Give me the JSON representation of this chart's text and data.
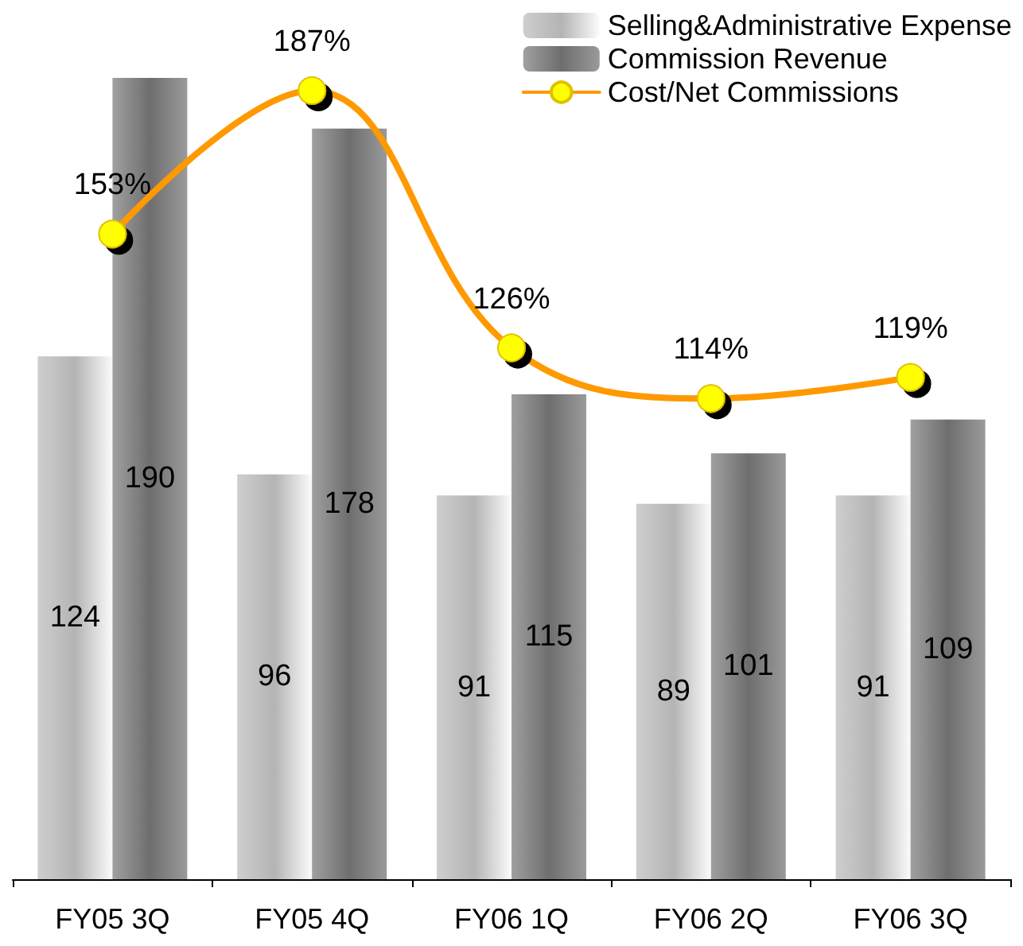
{
  "chart_data": {
    "type": "bar",
    "categories": [
      "FY05 3Q",
      "FY05 4Q",
      "FY06 1Q",
      "FY06 2Q",
      "FY06 3Q"
    ],
    "series": [
      {
        "name": "Selling&Administrative Expense",
        "color": "#b4b4b4",
        "values": [
          124,
          96,
          91,
          89,
          91
        ]
      },
      {
        "name": "Commission Revenue",
        "color": "#6e6e6e",
        "values": [
          190,
          178,
          115,
          101,
          109
        ]
      },
      {
        "name": "Cost/Net Commissions",
        "type": "line",
        "color": "#ff9900",
        "values": [
          153,
          187,
          126,
          114,
          119
        ],
        "value_labels": [
          "153%",
          "187%",
          "126%",
          "114%",
          "119%"
        ]
      }
    ],
    "data_labels": true,
    "tick_labels": "x",
    "legend": "top right",
    "marker": "circle",
    "line_style": "solid"
  }
}
